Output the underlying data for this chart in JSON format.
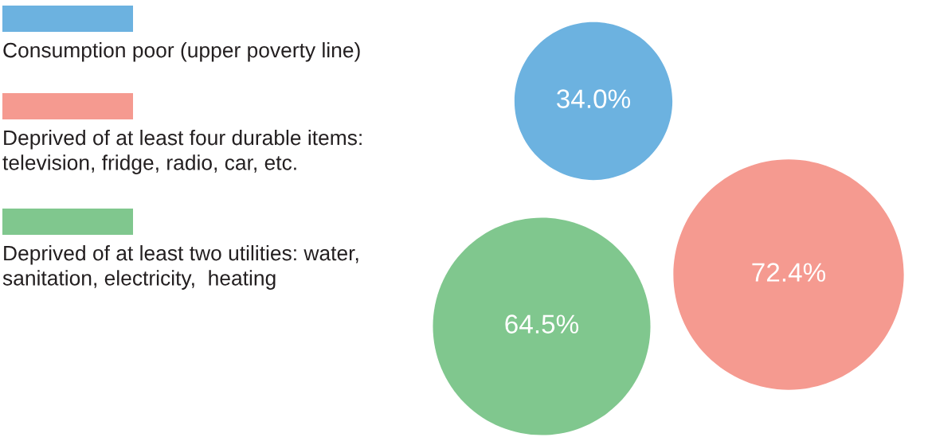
{
  "chart_data": {
    "type": "other",
    "categories": [
      "Consumption poor (upper poverty line)",
      "Deprived of at least four durable items:\ntelevision, fridge, radio, car, etc.",
      "Deprived of at least two utilities: water,\nsanitation, electricity,  heating"
    ],
    "values": [
      34.0,
      72.4,
      64.5
    ],
    "value_labels": [
      "34.0%",
      "72.4%",
      "64.5%"
    ],
    "colors": [
      "#6cb2e0",
      "#f59a90",
      "#80c78e"
    ]
  }
}
